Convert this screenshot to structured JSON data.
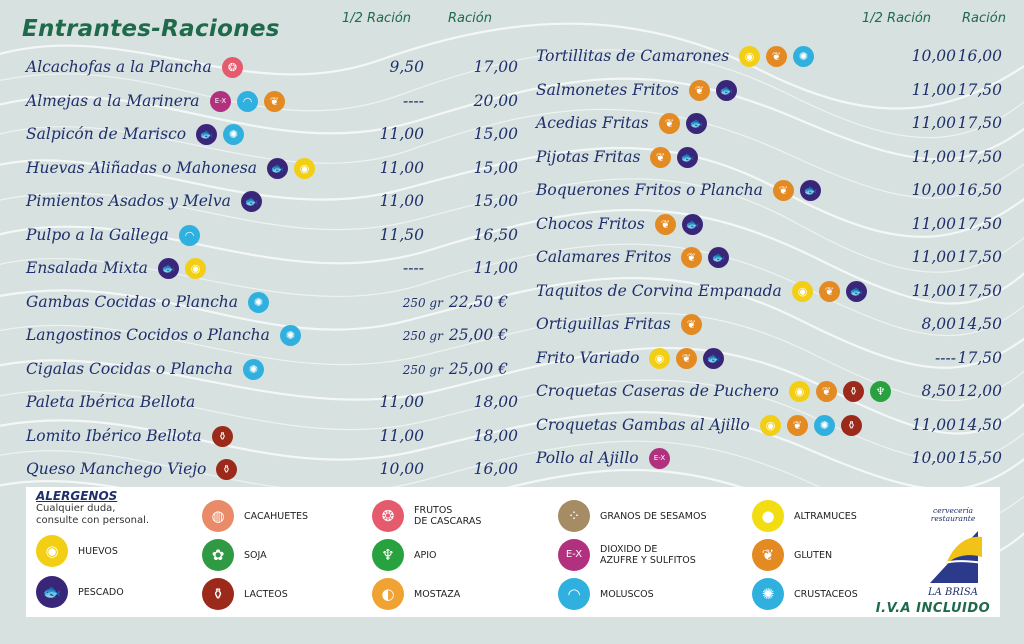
{
  "title": "Entrantes-Raciones",
  "col_half": "1/2 Ración",
  "col_full": "Ración",
  "left_items": [
    {
      "name": "Alcachofas a la Plancha",
      "allergens": [
        "frutos"
      ],
      "half": "9,50",
      "full": "17,00"
    },
    {
      "name": "Almejas a la Marinera",
      "allergens": [
        "sulfitos",
        "moluscos",
        "gluten"
      ],
      "half": "----",
      "full": "20,00"
    },
    {
      "name": "Salpicón de Marisco",
      "allergens": [
        "pescado",
        "crustaceos"
      ],
      "half": "11,00",
      "full": "15,00"
    },
    {
      "name": "Huevas Aliñadas o Mahonesa",
      "allergens": [
        "pescado",
        "huevos"
      ],
      "half": "11,00",
      "full": "15,00"
    },
    {
      "name": "Pimientos Asados y Melva",
      "allergens": [
        "pescado"
      ],
      "half": "11,00",
      "full": "15,00"
    },
    {
      "name": "Pulpo a la Gallega",
      "allergens": [
        "moluscos"
      ],
      "half": "11,50",
      "full": "16,50"
    },
    {
      "name": "Ensalada Mixta",
      "allergens": [
        "pescado",
        "huevos"
      ],
      "half": "----",
      "full": "11,00"
    },
    {
      "name": "Gambas Cocidas o Plancha",
      "allergens": [
        "crustaceos"
      ],
      "gr": "250 gr",
      "full": "22,50 €"
    },
    {
      "name": "Langostinos Cocidos o Plancha",
      "allergens": [
        "crustaceos"
      ],
      "gr": "250 gr",
      "full": "25,00 €"
    },
    {
      "name": "Cigalas Cocidas o Plancha",
      "allergens": [
        "crustaceos"
      ],
      "gr": "250 gr",
      "full": "25,00 €"
    },
    {
      "name": "Paleta Ibérica Bellota",
      "allergens": [],
      "half": "11,00",
      "full": "18,00"
    },
    {
      "name": "Lomito Ibérico Bellota",
      "allergens": [
        "lacteos"
      ],
      "half": "11,00",
      "full": "18,00"
    },
    {
      "name": "Queso Manchego Viejo",
      "allergens": [
        "lacteos"
      ],
      "half": "10,00",
      "full": "16,00"
    }
  ],
  "right_items": [
    {
      "name": "Tortillitas de Camarones",
      "allergens": [
        "huevos",
        "gluten",
        "crustaceos"
      ],
      "half": "10,00",
      "full": "16,00"
    },
    {
      "name": "Salmonetes Fritos",
      "allergens": [
        "gluten",
        "pescado"
      ],
      "half": "11,00",
      "full": "17,50"
    },
    {
      "name": "Acedias Fritas",
      "allergens": [
        "gluten",
        "pescado"
      ],
      "half": "11,00",
      "full": "17,50"
    },
    {
      "name": "Pijotas Fritas",
      "allergens": [
        "gluten",
        "pescado"
      ],
      "half": "11,00",
      "full": "17,50"
    },
    {
      "name": "Boquerones Fritos o Plancha",
      "allergens": [
        "gluten",
        "pescado"
      ],
      "half": "10,00",
      "full": "16,50"
    },
    {
      "name": "Chocos Fritos",
      "allergens": [
        "gluten",
        "pescado"
      ],
      "half": "11,00",
      "full": "17,50"
    },
    {
      "name": "Calamares Fritos",
      "allergens": [
        "gluten",
        "pescado"
      ],
      "half": "11,00",
      "full": "17,50"
    },
    {
      "name": "Taquitos de Corvina Empanada",
      "allergens": [
        "huevos",
        "gluten",
        "pescado"
      ],
      "half": "11,00",
      "full": "17,50"
    },
    {
      "name": "Ortiguillas Fritas",
      "allergens": [
        "gluten"
      ],
      "half": "8,00",
      "full": "14,50"
    },
    {
      "name": "Frito Variado",
      "allergens": [
        "huevos",
        "gluten",
        "pescado"
      ],
      "half": "----",
      "full": "17,50"
    },
    {
      "name": "Croquetas Caseras de Puchero",
      "allergens": [
        "huevos",
        "gluten",
        "lacteos",
        "apio"
      ],
      "half": "8,50",
      "full": "12,00"
    },
    {
      "name": "Croquetas Gambas al Ajillo",
      "allergens": [
        "huevos",
        "gluten",
        "crustaceos",
        "lacteos"
      ],
      "half": "11,00",
      "full": "14,50"
    },
    {
      "name": "Pollo al Ajillo",
      "allergens": [
        "sulfitos"
      ],
      "half": "10,00",
      "full": "15,50"
    }
  ],
  "legend": {
    "title": "ALERGENOS",
    "note": "Cualquier duda,\nconsulte con personal.",
    "items": [
      {
        "key": "huevos",
        "label": "HUEVOS"
      },
      {
        "key": "pescado",
        "label": "PESCADO"
      },
      {
        "key": "cacahuetes",
        "label": "CACAHUETES"
      },
      {
        "key": "soja",
        "label": "SOJA"
      },
      {
        "key": "lacteos",
        "label": "LACTEOS"
      },
      {
        "key": "frutos",
        "label": "FRUTOS\nDE CASCARAS"
      },
      {
        "key": "apio",
        "label": "APIO"
      },
      {
        "key": "mostaza",
        "label": "MOSTAZA"
      },
      {
        "key": "sesamo",
        "label": "GRANOS DE SESAMOS"
      },
      {
        "key": "sulfitos",
        "label": "DIOXIDO DE\nAZUFRE Y SULFITOS"
      },
      {
        "key": "moluscos",
        "label": "MOLUSCOS"
      },
      {
        "key": "altramuces",
        "label": "ALTRAMUCES"
      },
      {
        "key": "gluten",
        "label": "GLUTEN"
      },
      {
        "key": "crustaceos",
        "label": "CRUSTACEOS"
      }
    ]
  },
  "icon_glyphs": {
    "pescado": "🐟",
    "moluscos": "◠",
    "crustaceos": "✺",
    "gluten": "❦",
    "huevos": "◉",
    "lacteos": "⚱",
    "sulfitos": "E-X",
    "frutos": "❂",
    "apio": "♆",
    "altramuces": "●",
    "cacahuetes": "◍",
    "soja": "✿",
    "sesamo": "⁘",
    "mostaza": "◐"
  },
  "logo": {
    "sub": "cervecería\nrestaurante",
    "name": "LA BRISA"
  },
  "iva": "I.V.A INCLUIDO"
}
